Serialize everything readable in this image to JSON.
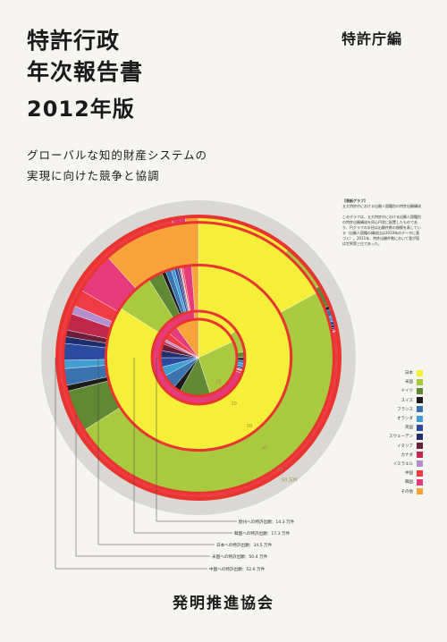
{
  "title": {
    "line1": "特許行政",
    "line2": "年次報告書",
    "year": "2012年版"
  },
  "editor": "特許庁編",
  "subtitle": {
    "line1": "グローバルな知的財産システムの",
    "line2": "実現に向けた競争と協調"
  },
  "publisher": "発明推進協会",
  "note": {
    "heading": "【表紙グラフ】",
    "caption": "五大特許庁における出願人国籍別の特許出願構成",
    "body": "このグラフは、五大特許庁における出願人国籍別の特許出願構成を同心円状に配置したものであり、円グラフの半径は出願件数の規模を表している（出願人国籍の構成比は2010年のデータに基づく）。2011年、特許出願件数において我が国は世界第三位であった。"
  },
  "legend": [
    {
      "label": "日本",
      "color": "#f5ef3a"
    },
    {
      "label": "米国",
      "color": "#a9c93f"
    },
    {
      "label": "ドイツ",
      "color": "#5f8a33"
    },
    {
      "label": "スイス",
      "color": "#1c1c1c"
    },
    {
      "label": "フランス",
      "color": "#3b73b1"
    },
    {
      "label": "オランダ",
      "color": "#3f9fd3"
    },
    {
      "label": "英国",
      "color": "#2b4aa0"
    },
    {
      "label": "スウェーデン",
      "color": "#1f2f6e"
    },
    {
      "label": "イタリア",
      "color": "#6b1e3a"
    },
    {
      "label": "カナダ",
      "color": "#c0284a"
    },
    {
      "label": "イスラエル",
      "color": "#b48fd0"
    },
    {
      "label": "中国",
      "color": "#ef3c44"
    },
    {
      "label": "韓国",
      "color": "#e63b7b"
    },
    {
      "label": "その他",
      "color": "#f6a33a"
    }
  ],
  "chart_data": {
    "type": "pie",
    "title": "五大特許庁における出願人国籍別の特許出願構成",
    "rings": [
      {
        "office": "欧州への特許出願",
        "total_label": "14.3 万件",
        "radius_value": 14.3,
        "shares": [
          {
            "name": "日本",
            "value": 18
          },
          {
            "name": "米国",
            "value": 27
          },
          {
            "name": "ドイツ",
            "value": 13
          },
          {
            "name": "スイス",
            "value": 3
          },
          {
            "name": "フランス",
            "value": 6
          },
          {
            "name": "オランダ",
            "value": 4
          },
          {
            "name": "英国",
            "value": 4
          },
          {
            "name": "スウェーデン",
            "value": 3
          },
          {
            "name": "イタリア",
            "value": 3
          },
          {
            "name": "カナダ",
            "value": 1
          },
          {
            "name": "イスラエル",
            "value": 1
          },
          {
            "name": "中国",
            "value": 3
          },
          {
            "name": "韓国",
            "value": 4
          },
          {
            "name": "その他",
            "value": 10
          }
        ]
      },
      {
        "office": "韓国への特許出願",
        "total_label": "17.3 万件",
        "radius_value": 17.3,
        "shares": [
          {
            "name": "日本",
            "value": 15
          },
          {
            "name": "米国",
            "value": 8
          },
          {
            "name": "ドイツ",
            "value": 2
          },
          {
            "name": "スイス",
            "value": 1
          },
          {
            "name": "フランス",
            "value": 1
          },
          {
            "name": "オランダ",
            "value": 1
          },
          {
            "name": "英国",
            "value": 0.5
          },
          {
            "name": "スウェーデン",
            "value": 0.5
          },
          {
            "name": "イタリア",
            "value": 0.3
          },
          {
            "name": "カナダ",
            "value": 0.2
          },
          {
            "name": "イスラエル",
            "value": 0.2
          },
          {
            "name": "中国",
            "value": 0.8
          },
          {
            "name": "韓国",
            "value": 68
          },
          {
            "name": "その他",
            "value": 1.5
          }
        ]
      },
      {
        "office": "日本への特許出願",
        "total_label": "34.5 万件",
        "radius_value": 34.5,
        "shares": [
          {
            "name": "日本",
            "value": 84
          },
          {
            "name": "米国",
            "value": 7
          },
          {
            "name": "ドイツ",
            "value": 2.5
          },
          {
            "name": "スイス",
            "value": 0.7
          },
          {
            "name": "フランス",
            "value": 1
          },
          {
            "name": "オランダ",
            "value": 0.6
          },
          {
            "name": "英国",
            "value": 0.5
          },
          {
            "name": "スウェーデン",
            "value": 0.3
          },
          {
            "name": "イタリア",
            "value": 0.2
          },
          {
            "name": "カナダ",
            "value": 0.1
          },
          {
            "name": "イスラエル",
            "value": 0.1
          },
          {
            "name": "中国",
            "value": 0.3
          },
          {
            "name": "韓国",
            "value": 1.5
          },
          {
            "name": "その他",
            "value": 1.2
          }
        ]
      },
      {
        "office": "米国への特許出願",
        "total_label": "50.4 万件",
        "radius_value": 50.4,
        "shares": [
          {
            "name": "日本",
            "value": 17
          },
          {
            "name": "米国",
            "value": 49
          },
          {
            "name": "ドイツ",
            "value": 5
          },
          {
            "name": "スイス",
            "value": 0.7
          },
          {
            "name": "フランス",
            "value": 2
          },
          {
            "name": "オランダ",
            "value": 1
          },
          {
            "name": "英国",
            "value": 2
          },
          {
            "name": "スウェーデン",
            "value": 0.8
          },
          {
            "name": "イタリア",
            "value": 0.8
          },
          {
            "name": "カナダ",
            "value": 2
          },
          {
            "name": "イスラエル",
            "value": 1
          },
          {
            "name": "中国",
            "value": 2
          },
          {
            "name": "韓国",
            "value": 5
          },
          {
            "name": "その他",
            "value": 11.7
          }
        ]
      },
      {
        "office": "中国への特許出願",
        "total_label": "52.6 万件",
        "radius_value": 52.6,
        "shares": [
          {
            "name": "日本",
            "value": 11
          },
          {
            "name": "米国",
            "value": 5.5
          },
          {
            "name": "ドイツ",
            "value": 2.5
          },
          {
            "name": "スイス",
            "value": 0.4
          },
          {
            "name": "フランス",
            "value": 0.8
          },
          {
            "name": "オランダ",
            "value": 0.6
          },
          {
            "name": "英国",
            "value": 0.4
          },
          {
            "name": "スウェーデン",
            "value": 0.3
          },
          {
            "name": "イタリア",
            "value": 0.2
          },
          {
            "name": "カナダ",
            "value": 0.2
          },
          {
            "name": "イスラエル",
            "value": 0.1
          },
          {
            "name": "中国",
            "value": 75
          },
          {
            "name": "韓国",
            "value": 1.5
          },
          {
            "name": "その他",
            "value": 1.5
          }
        ]
      }
    ],
    "axis_ticks": [
      10,
      20,
      30,
      40,
      50
    ],
    "axis_unit_label": "50 万件"
  }
}
